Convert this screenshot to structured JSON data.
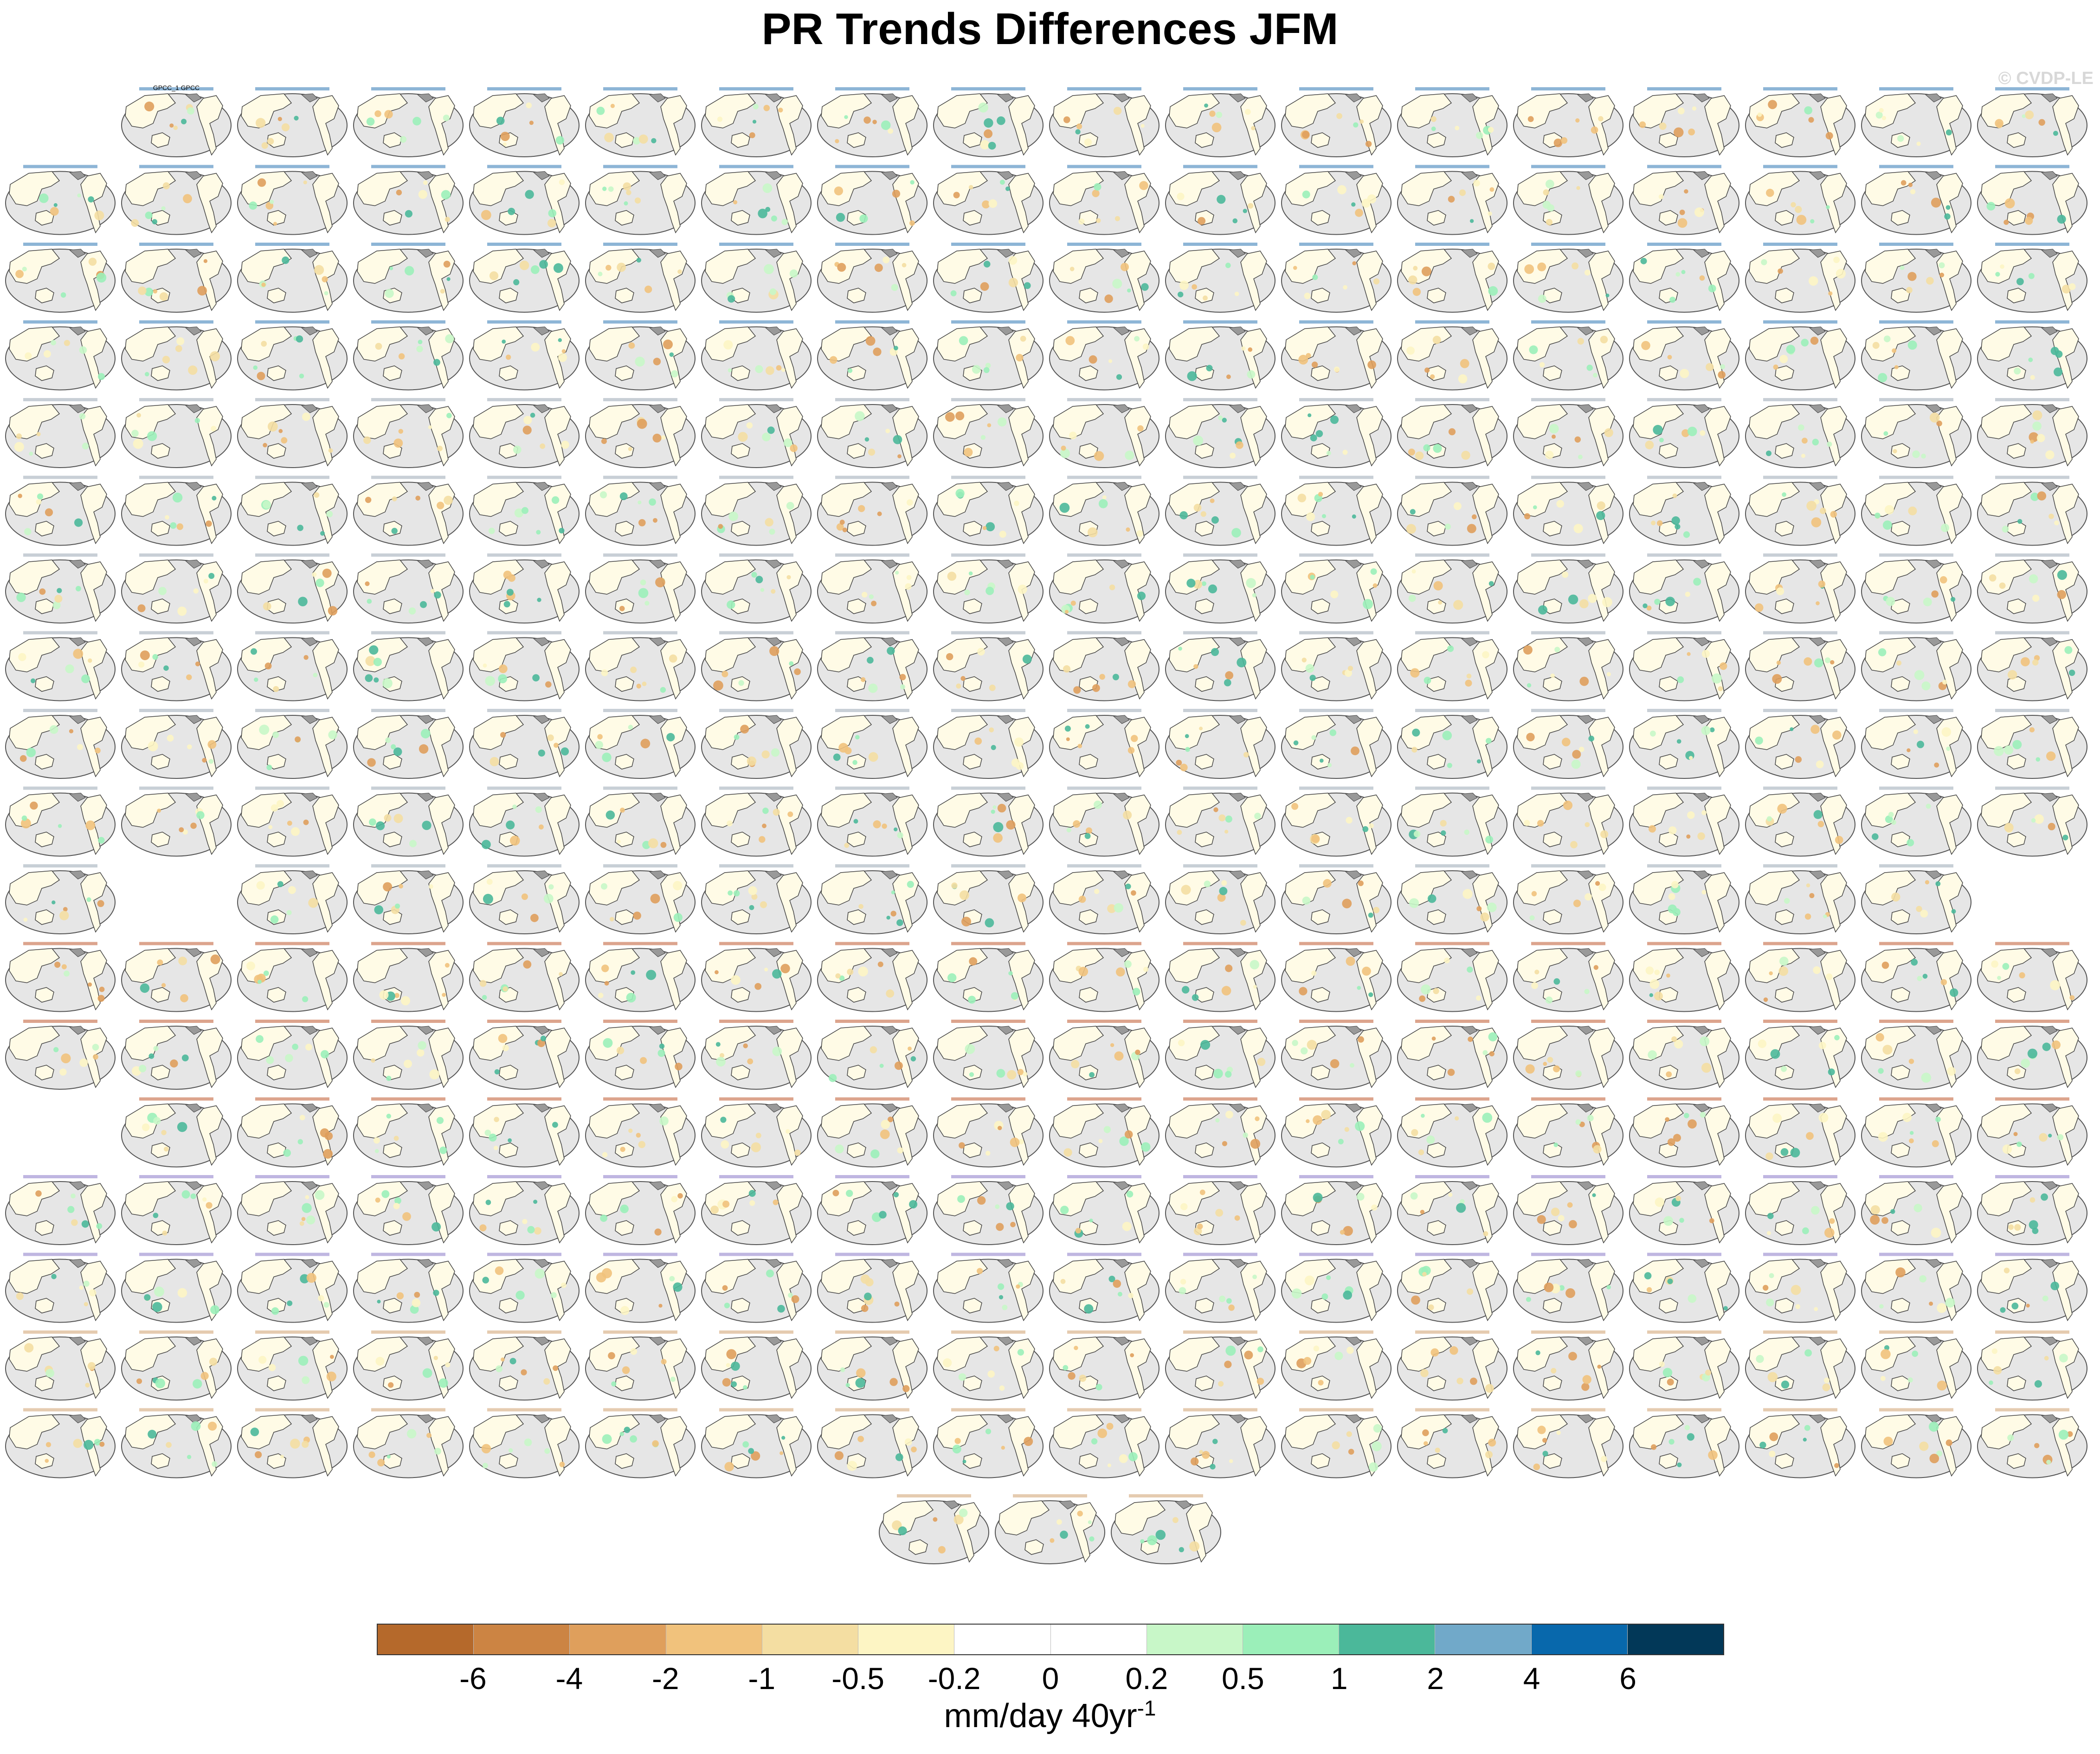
{
  "figure": {
    "title": "PR Trends Differences JFM",
    "watermark": "© CVDP-LE",
    "units_main": "mm/day 40yr",
    "units_exponent": "-1"
  },
  "colorbar": {
    "colors": [
      "#b5692b",
      "#cc8443",
      "#df9f5c",
      "#f1c27c",
      "#f4dea2",
      "#fdf5c4",
      "#ffffff",
      "#ffffff",
      "#c8f7c8",
      "#9befb9",
      "#4bb89a",
      "#71a9c9",
      "#0868ac",
      "#023858"
    ],
    "tick_labels": [
      "-6",
      "-4",
      "-2",
      "-1",
      "-0.5",
      "-0.2",
      "0",
      "0.2",
      "0.5",
      "1",
      "2",
      "4",
      "6"
    ]
  },
  "panels": {
    "row_counts": [
      17,
      18,
      18,
      18,
      18,
      18,
      18,
      18,
      18,
      18,
      16,
      18,
      18,
      17,
      18,
      18,
      18,
      18,
      3
    ],
    "row_skip_first": [
      1,
      0,
      0,
      0,
      0,
      0,
      0,
      0,
      0,
      0,
      0,
      0,
      0,
      1,
      0,
      0,
      0,
      0,
      0
    ],
    "row_skip_second": [
      0,
      0,
      0,
      0,
      0,
      0,
      0,
      0,
      0,
      0,
      1,
      0,
      0,
      0,
      0,
      0,
      0,
      0,
      0
    ],
    "row_label_colors": [
      "#2f78b4",
      "#2f78b4",
      "#2f78b4",
      "#2f78b4",
      "#9aa7b4",
      "#9aa7b4",
      "#9aa7b4",
      "#9aa7b4",
      "#9aa7b4",
      "#9aa7b4",
      "#9aa7b4",
      "#c05a30",
      "#c05a30",
      "#c05a30",
      "#8a7ac8",
      "#8a7ac8",
      "#d0a070",
      "#d0a070",
      "#d0a070"
    ],
    "first_panel_label": "GPCC_1 GPCC"
  }
}
